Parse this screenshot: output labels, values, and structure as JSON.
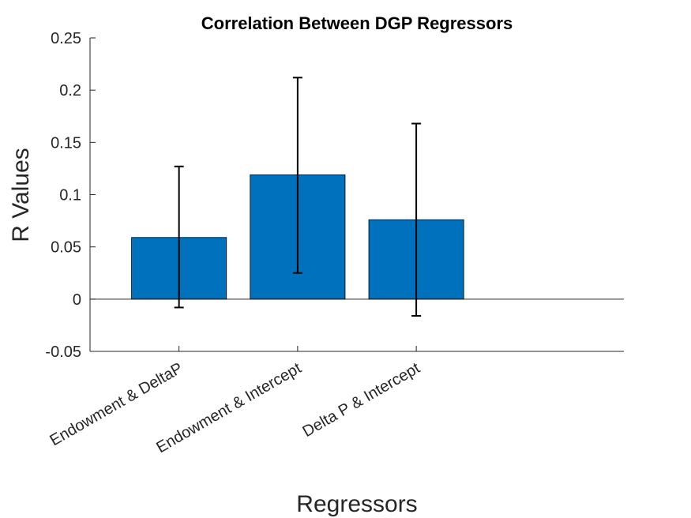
{
  "chart_data": {
    "type": "bar",
    "title": "Correlation Between DGP Regressors",
    "xlabel": "Regressors",
    "ylabel": "R Values",
    "categories": [
      "Endowment & DeltaP",
      "Endowment & Intercept",
      "Delta P & Intercept"
    ],
    "values": [
      0.059,
      0.119,
      0.076
    ],
    "error_low": [
      -0.008,
      0.025,
      -0.016
    ],
    "error_high": [
      0.127,
      0.212,
      0.168
    ],
    "ylim": [
      -0.05,
      0.25
    ],
    "yticks": [
      "-0.05",
      "0",
      "0.05",
      "0.1",
      "0.15",
      "0.2",
      "0.25"
    ],
    "ytick_values": [
      -0.05,
      0,
      0.05,
      0.1,
      0.15,
      0.2,
      0.25
    ],
    "grid": false,
    "bar_color": "#0072BD",
    "axis_color": "#262626",
    "error_color": "#000000"
  }
}
